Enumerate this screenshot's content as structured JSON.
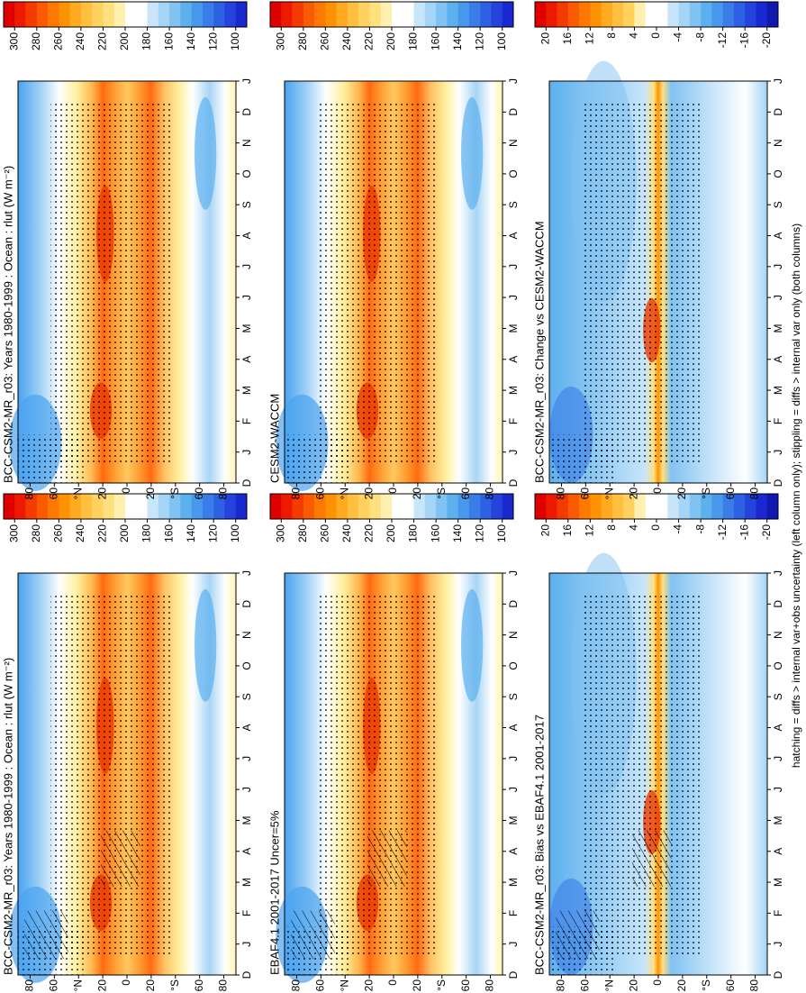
{
  "chart_data": [
    {
      "type": "contour",
      "title": "BCC-CSM2-MR_r03: Years 1980-1999 : Ocean : rlut (W m⁻²)",
      "categories": [
        "D",
        "J",
        "F",
        "M",
        "A",
        "M",
        "J",
        "J",
        "A",
        "S",
        "O",
        "N",
        "D",
        "J"
      ],
      "ylim": [
        90,
        -90
      ],
      "yticks": [
        80,
        60,
        {
          "value": 40,
          "label": "°N"
        },
        20,
        0,
        {
          "value": -20,
          "label": "20"
        },
        {
          "value": -40,
          "label": "°S"
        },
        {
          "value": -60,
          "label": "60"
        },
        {
          "value": -80,
          "label": "80"
        }
      ],
      "clim": [
        310,
        90
      ],
      "cticks": [
        300,
        280,
        260,
        240,
        220,
        200,
        180,
        160,
        140,
        120,
        100
      ],
      "colors": [
        "#e00000",
        "#ee1a00",
        "#f53a00",
        "#fa5a00",
        "#ff7800",
        "#ff9200",
        "#ffaa20",
        "#ffc040",
        "#ffd260",
        "#ffe080",
        "#fff0b0",
        "#ffffff",
        "#ffffff",
        "#c8e6fa",
        "#a4d4f6",
        "#80c2f2",
        "#5cb0ee",
        "#4898ec",
        "#3a7ce8",
        "#2e60e4",
        "#2442dc",
        "#1a28d0"
      ],
      "hatch": true
    },
    {
      "type": "contour",
      "title": "EBAF4.1 2001-2017 Uncer=5%",
      "categories": [
        "D",
        "J",
        "F",
        "M",
        "A",
        "M",
        "J",
        "J",
        "A",
        "S",
        "O",
        "N",
        "D",
        "J"
      ],
      "ylim": [
        90,
        -90
      ],
      "yticks": [
        80,
        60,
        {
          "value": 40,
          "label": "°N"
        },
        20,
        0,
        {
          "value": -20,
          "label": "20"
        },
        {
          "value": -40,
          "label": "°S"
        },
        {
          "value": -60,
          "label": "60"
        },
        {
          "value": -80,
          "label": "80"
        }
      ],
      "clim": [
        310,
        90
      ],
      "cticks": [
        300,
        280,
        260,
        240,
        220,
        200,
        180,
        160,
        140,
        120,
        100
      ],
      "colors": [
        "#e00000",
        "#ee1a00",
        "#f53a00",
        "#fa5a00",
        "#ff7800",
        "#ff9200",
        "#ffaa20",
        "#ffc040",
        "#ffd260",
        "#ffe080",
        "#fff0b0",
        "#ffffff",
        "#ffffff",
        "#c8e6fa",
        "#a4d4f6",
        "#80c2f2",
        "#5cb0ee",
        "#4898ec",
        "#3a7ce8",
        "#2e60e4",
        "#2442dc",
        "#1a28d0"
      ],
      "hatch": true
    },
    {
      "type": "contour",
      "title": "BCC-CSM2-MR_r03: Bias vs EBAF4.1 2001-2017",
      "categories": [
        "D",
        "J",
        "F",
        "M",
        "A",
        "M",
        "J",
        "J",
        "A",
        "S",
        "O",
        "N",
        "D",
        "J"
      ],
      "ylim": [
        90,
        -90
      ],
      "yticks": [
        80,
        60,
        {
          "value": 40,
          "label": "°N"
        },
        20,
        0,
        {
          "value": -20,
          "label": "20"
        },
        {
          "value": -40,
          "label": "°S"
        },
        {
          "value": -60,
          "label": "60"
        },
        {
          "value": -80,
          "label": "80"
        }
      ],
      "clim": [
        22,
        -22
      ],
      "cticks": [
        20,
        16,
        12,
        8,
        4,
        0,
        -4,
        -8,
        -12,
        -16,
        -20
      ],
      "colors": [
        "#e00000",
        "#ee1a00",
        "#f53a00",
        "#fa5a00",
        "#ff7800",
        "#ff9200",
        "#ffaa20",
        "#ffc040",
        "#ffd260",
        "#fff0b0",
        "#ffffff",
        "#ffffff",
        "#c8e6fa",
        "#a4d4f6",
        "#80c2f2",
        "#5cb0ee",
        "#4898ec",
        "#3a7ce8",
        "#2e60e4",
        "#2442dc",
        "#1a28d0",
        "#1018b0"
      ],
      "hatch": true
    },
    {
      "type": "contour",
      "title": "BCC-CSM2-MR_r03: Years 1980-1999 : Ocean : rlut (W m⁻²)",
      "categories": [
        "D",
        "J",
        "F",
        "M",
        "A",
        "M",
        "J",
        "J",
        "A",
        "S",
        "O",
        "N",
        "D",
        "J"
      ],
      "ylim": [
        90,
        -90
      ],
      "yticks": [
        80,
        60,
        {
          "value": 40,
          "label": "°N"
        },
        20,
        0,
        {
          "value": -20,
          "label": "20"
        },
        {
          "value": -40,
          "label": "°S"
        },
        {
          "value": -60,
          "label": "60"
        },
        {
          "value": -80,
          "label": "80"
        }
      ],
      "clim": [
        310,
        90
      ],
      "cticks": [
        300,
        280,
        260,
        240,
        220,
        200,
        180,
        160,
        140,
        120,
        100
      ],
      "colors": [
        "#e00000",
        "#ee1a00",
        "#f53a00",
        "#fa5a00",
        "#ff7800",
        "#ff9200",
        "#ffaa20",
        "#ffc040",
        "#ffd260",
        "#ffe080",
        "#fff0b0",
        "#ffffff",
        "#ffffff",
        "#c8e6fa",
        "#a4d4f6",
        "#80c2f2",
        "#5cb0ee",
        "#4898ec",
        "#3a7ce8",
        "#2e60e4",
        "#2442dc",
        "#1a28d0"
      ],
      "hatch": false
    },
    {
      "type": "contour",
      "title": "CESM2-WACCM",
      "categories": [
        "D",
        "J",
        "F",
        "M",
        "A",
        "M",
        "J",
        "J",
        "A",
        "S",
        "O",
        "N",
        "D",
        "J"
      ],
      "ylim": [
        90,
        -90
      ],
      "yticks": [
        80,
        60,
        {
          "value": 40,
          "label": "°N"
        },
        20,
        0,
        {
          "value": -20,
          "label": "20"
        },
        {
          "value": -40,
          "label": "°S"
        },
        {
          "value": -60,
          "label": "60"
        },
        {
          "value": -80,
          "label": "80"
        }
      ],
      "clim": [
        310,
        90
      ],
      "cticks": [
        300,
        280,
        260,
        240,
        220,
        200,
        180,
        160,
        140,
        120,
        100
      ],
      "colors": [
        "#e00000",
        "#ee1a00",
        "#f53a00",
        "#fa5a00",
        "#ff7800",
        "#ff9200",
        "#ffaa20",
        "#ffc040",
        "#ffd260",
        "#ffe080",
        "#fff0b0",
        "#ffffff",
        "#ffffff",
        "#c8e6fa",
        "#a4d4f6",
        "#80c2f2",
        "#5cb0ee",
        "#4898ec",
        "#3a7ce8",
        "#2e60e4",
        "#2442dc",
        "#1a28d0"
      ],
      "hatch": false
    },
    {
      "type": "contour",
      "title": "BCC-CSM2-MR_r03: Change vs CESM2-WACCM",
      "categories": [
        "D",
        "J",
        "F",
        "M",
        "A",
        "M",
        "J",
        "J",
        "A",
        "S",
        "O",
        "N",
        "D",
        "J"
      ],
      "ylim": [
        90,
        -90
      ],
      "yticks": [
        80,
        60,
        {
          "value": 40,
          "label": "°N"
        },
        20,
        0,
        {
          "value": -20,
          "label": "20"
        },
        {
          "value": -40,
          "label": "°S"
        },
        {
          "value": -60,
          "label": "60"
        },
        {
          "value": -80,
          "label": "80"
        }
      ],
      "clim": [
        22,
        -22
      ],
      "cticks": [
        20,
        16,
        12,
        8,
        4,
        0,
        -4,
        -8,
        -12,
        -16,
        -20
      ],
      "colors": [
        "#e00000",
        "#ee1a00",
        "#f53a00",
        "#fa5a00",
        "#ff7800",
        "#ff9200",
        "#ffaa20",
        "#ffc040",
        "#ffd260",
        "#fff0b0",
        "#ffffff",
        "#ffffff",
        "#c8e6fa",
        "#a4d4f6",
        "#80c2f2",
        "#5cb0ee",
        "#4898ec",
        "#3a7ce8",
        "#2e60e4",
        "#2442dc",
        "#1a28d0",
        "#1018b0"
      ],
      "hatch": false
    }
  ],
  "footnote": "hatching = diffs > internal var+obs uncertainty (left column only); stippling = diffs > internal var only (both columns)"
}
